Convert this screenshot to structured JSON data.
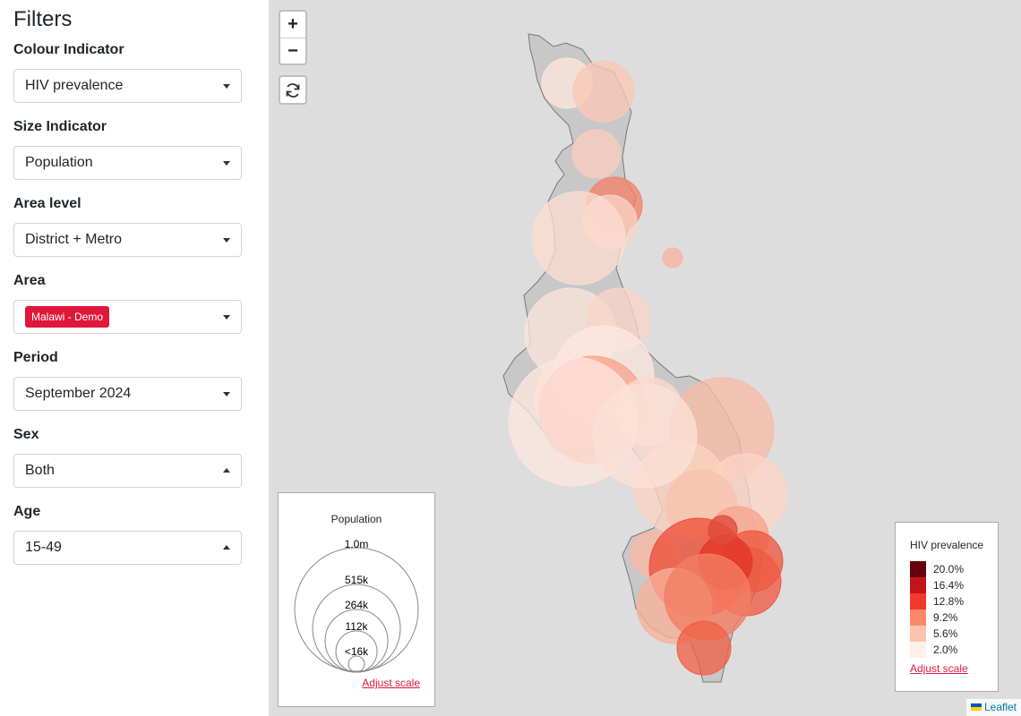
{
  "sidebar": {
    "title": "Filters",
    "filters": [
      {
        "label": "Colour Indicator",
        "value": "HIV prevalence",
        "caret": "down"
      },
      {
        "label": "Size Indicator",
        "value": "Population",
        "caret": "down"
      },
      {
        "label": "Area level",
        "value": "District + Metro",
        "caret": "down"
      },
      {
        "label": "Area",
        "tag": "Malawi - Demo",
        "caret": "down"
      },
      {
        "label": "Period",
        "value": "September 2024",
        "caret": "down"
      },
      {
        "label": "Sex",
        "value": "Both",
        "caret": "up"
      },
      {
        "label": "Age",
        "value": "15-49",
        "caret": "up"
      }
    ]
  },
  "map": {
    "zoom_in": "+",
    "zoom_out": "−",
    "reset_icon": "refresh-icon",
    "size_legend": {
      "title": "Population",
      "labels": [
        "1.0m",
        "515k",
        "264k",
        "112k",
        "<16k"
      ],
      "adjust_label": "Adjust scale"
    },
    "color_legend": {
      "title": "HIV prevalence",
      "items": [
        {
          "label": "20.0%",
          "color": "#67000d"
        },
        {
          "label": "16.4%",
          "color": "#c3161b"
        },
        {
          "label": "12.8%",
          "color": "#f03a2c"
        },
        {
          "label": "9.2%",
          "color": "#fb8969"
        },
        {
          "label": "5.6%",
          "color": "#fcc4ae"
        },
        {
          "label": "2.0%",
          "color": "#fff0ea"
        }
      ],
      "adjust_label": "Adjust scale"
    },
    "attribution": "Leaflet"
  }
}
